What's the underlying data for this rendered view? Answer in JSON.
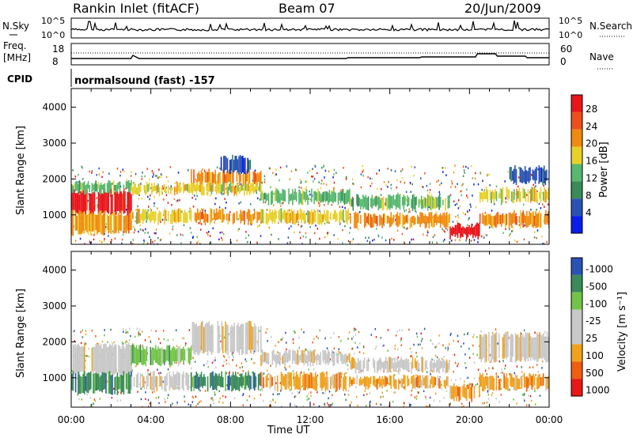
{
  "header": {
    "station": "Rankin Inlet (fitACF)",
    "beam": "Beam 07",
    "date": "20/Jun/2009"
  },
  "panels": {
    "nsky": {
      "label": "N.Sky",
      "right_label": "N.Search",
      "ticks": [
        "10^5",
        "10^0"
      ],
      "right_ticks": [
        "10^5",
        "10^0"
      ]
    },
    "freq": {
      "label_line1": "Freq.",
      "label_line2": "[MHz]",
      "ticks": [
        "18",
        "8"
      ],
      "right_label": "Nave",
      "right_ticks": [
        "60",
        "0"
      ]
    },
    "cpid": {
      "label": "CPID",
      "value": "normalsound (fast) -157"
    }
  },
  "colors": {
    "power": [
      "#0a1eea",
      "#2a52b4",
      "#3a8a5a",
      "#58b870",
      "#e8d02a",
      "#f08a10",
      "#ee4e1a",
      "#e8151a"
    ],
    "velocity": [
      "#e81818",
      "#f05e10",
      "#f0a21e",
      "#c8c8c8",
      "#c8c8c8",
      "#72c448",
      "#3a8a5a",
      "#2a52b4"
    ]
  },
  "chart_data": [
    {
      "type": "heatmap",
      "name": "power",
      "ylabel": "Slant Range [km]",
      "yticks": [
        1000,
        2000,
        3000,
        4000
      ],
      "ylim": [
        180,
        4520
      ],
      "xlim": [
        0,
        24
      ],
      "xticks": [
        "00:00",
        "04:00",
        "08:00",
        "12:00",
        "16:00",
        "20:00",
        "00:00"
      ],
      "colorbar": {
        "label": "Power [dB]",
        "ticks": [
          4,
          8,
          12,
          16,
          20,
          24,
          28
        ]
      },
      "bands": [
        {
          "x0": 0.0,
          "x1": 3.0,
          "y0": 1050,
          "y1": 1650,
          "c": 7
        },
        {
          "x0": 0.0,
          "x1": 3.0,
          "y0": 1650,
          "y1": 1900,
          "c": 3
        },
        {
          "x0": 0.0,
          "x1": 3.0,
          "y0": 500,
          "y1": 1050,
          "c": 5
        },
        {
          "x0": 3.0,
          "x1": 6.0,
          "y0": 1600,
          "y1": 1850,
          "c": 4
        },
        {
          "x0": 3.0,
          "x1": 6.0,
          "y0": 800,
          "y1": 1100,
          "c": 4
        },
        {
          "x0": 6.0,
          "x1": 9.5,
          "y0": 1850,
          "y1": 2200,
          "c": 5
        },
        {
          "x0": 6.0,
          "x1": 9.5,
          "y0": 1600,
          "y1": 1850,
          "c": 4
        },
        {
          "x0": 6.0,
          "x1": 9.5,
          "y0": 800,
          "y1": 1100,
          "c": 5
        },
        {
          "x0": 7.5,
          "x1": 9.0,
          "y0": 2200,
          "y1": 2600,
          "c": 1
        },
        {
          "x0": 9.5,
          "x1": 14.0,
          "y0": 1350,
          "y1": 1650,
          "c": 3
        },
        {
          "x0": 9.5,
          "x1": 14.0,
          "y0": 800,
          "y1": 1100,
          "c": 4
        },
        {
          "x0": 14.0,
          "x1": 19.0,
          "y0": 1200,
          "y1": 1500,
          "c": 3
        },
        {
          "x0": 14.0,
          "x1": 19.0,
          "y0": 700,
          "y1": 1000,
          "c": 5
        },
        {
          "x0": 19.0,
          "x1": 20.5,
          "y0": 400,
          "y1": 700,
          "c": 7
        },
        {
          "x0": 20.5,
          "x1": 24.0,
          "y0": 1400,
          "y1": 1700,
          "c": 4
        },
        {
          "x0": 20.5,
          "x1": 24.0,
          "y0": 700,
          "y1": 1050,
          "c": 5
        },
        {
          "x0": 22.0,
          "x1": 24.0,
          "y0": 1900,
          "y1": 2300,
          "c": 1
        }
      ]
    },
    {
      "type": "heatmap",
      "name": "velocity",
      "ylabel": "Slant Range [km]",
      "yticks": [
        1000,
        2000,
        3000,
        4000
      ],
      "ylim": [
        180,
        4520
      ],
      "xlim": [
        0,
        24
      ],
      "xticks": [
        "00:00",
        "04:00",
        "08:00",
        "12:00",
        "16:00",
        "20:00",
        "00:00"
      ],
      "xlabel": "Time UT",
      "colorbar": {
        "label": "Velocity [m s⁻¹]",
        "ticks": [
          "1000",
          "500",
          "100",
          "25",
          "-25",
          "-100",
          "-500",
          "-1000"
        ]
      },
      "bands": [
        {
          "x0": 0.0,
          "x1": 3.0,
          "y0": 1100,
          "y1": 1900,
          "c": 3
        },
        {
          "x0": 0.0,
          "x1": 3.0,
          "y0": 600,
          "y1": 1100,
          "c": 6
        },
        {
          "x0": 3.0,
          "x1": 6.0,
          "y0": 1400,
          "y1": 1850,
          "c": 5
        },
        {
          "x0": 3.0,
          "x1": 6.0,
          "y0": 700,
          "y1": 1100,
          "c": 3
        },
        {
          "x0": 6.0,
          "x1": 9.5,
          "y0": 1700,
          "y1": 2500,
          "c": 3
        },
        {
          "x0": 6.0,
          "x1": 9.5,
          "y0": 700,
          "y1": 1100,
          "c": 6
        },
        {
          "x0": 9.5,
          "x1": 14.0,
          "y0": 1400,
          "y1": 1700,
          "c": 3
        },
        {
          "x0": 9.5,
          "x1": 14.0,
          "y0": 700,
          "y1": 1100,
          "c": 2
        },
        {
          "x0": 14.0,
          "x1": 19.0,
          "y0": 1200,
          "y1": 1500,
          "c": 3
        },
        {
          "x0": 14.0,
          "x1": 19.0,
          "y0": 750,
          "y1": 1000,
          "c": 2
        },
        {
          "x0": 19.0,
          "x1": 20.5,
          "y0": 400,
          "y1": 800,
          "c": 2
        },
        {
          "x0": 20.5,
          "x1": 24.0,
          "y0": 1500,
          "y1": 2200,
          "c": 3
        },
        {
          "x0": 20.5,
          "x1": 24.0,
          "y0": 700,
          "y1": 1050,
          "c": 2
        }
      ]
    }
  ]
}
